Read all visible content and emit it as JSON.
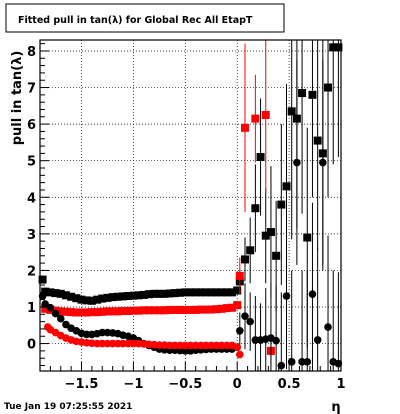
{
  "chart_data": {
    "type": "scatter",
    "title": "Fitted pull in tan(λ) for Global Rec All EtapT",
    "xlabel": "η",
    "ylabel": "pull in tan(λ)",
    "xlim": [
      -1.9,
      1.0
    ],
    "ylim": [
      -0.75,
      8.3
    ],
    "xticks": [
      -1.5,
      -1,
      -0.5,
      0,
      0.5,
      1
    ],
    "xtick_labels": [
      "−1.5",
      "−1",
      "−0.5",
      "0",
      "0.5",
      "1"
    ],
    "yticks": [
      0,
      1,
      2,
      3,
      4,
      5,
      6,
      7,
      8
    ],
    "ytick_labels": [
      "0",
      "1",
      "2",
      "3",
      "4",
      "5",
      "6",
      "7",
      "8"
    ],
    "grid": true,
    "timestamp": "Tue Jan 19 07:25:55 2021",
    "series": [
      {
        "marker": "square",
        "color": "#000000",
        "x": [
          -1.875,
          -1.85,
          -1.8,
          -1.75,
          -1.7,
          -1.65,
          -1.6,
          -1.55,
          -1.5,
          -1.45,
          -1.4,
          -1.35,
          -1.3,
          -1.25,
          -1.2,
          -1.15,
          -1.1,
          -1.05,
          -1.0,
          -0.95,
          -0.9,
          -0.85,
          -0.8,
          -0.75,
          -0.7,
          -0.65,
          -0.6,
          -0.55,
          -0.5,
          -0.45,
          -0.4,
          -0.35,
          -0.3,
          -0.25,
          -0.2,
          -0.15,
          -0.1,
          -0.05,
          0.0,
          0.025,
          0.075,
          0.125,
          0.175,
          0.225,
          0.275,
          0.325,
          0.375,
          0.425,
          0.475,
          0.525,
          0.575,
          0.625,
          0.675,
          0.725,
          0.775,
          0.825,
          0.875,
          0.925,
          0.975
        ],
        "y": [
          1.75,
          1.42,
          1.4,
          1.38,
          1.36,
          1.32,
          1.28,
          1.24,
          1.2,
          1.18,
          1.17,
          1.2,
          1.23,
          1.25,
          1.27,
          1.28,
          1.29,
          1.3,
          1.31,
          1.32,
          1.33,
          1.35,
          1.36,
          1.36,
          1.36,
          1.37,
          1.38,
          1.39,
          1.4,
          1.4,
          1.4,
          1.4,
          1.4,
          1.4,
          1.4,
          1.4,
          1.4,
          1.4,
          1.45,
          1.7,
          2.3,
          2.55,
          3.7,
          5.1,
          2.95,
          3.05,
          2.4,
          3.8,
          4.3,
          6.35,
          6.15,
          6.85,
          2.9,
          6.8,
          5.55,
          5.2,
          7.0,
          8.1,
          8.1
        ],
        "err": [
          0.05,
          0.04,
          0.04,
          0.04,
          0.04,
          0.04,
          0.04,
          0.04,
          0.04,
          0.04,
          0.04,
          0.04,
          0.04,
          0.04,
          0.04,
          0.04,
          0.04,
          0.04,
          0.04,
          0.04,
          0.04,
          0.04,
          0.04,
          0.04,
          0.04,
          0.04,
          0.04,
          0.04,
          0.04,
          0.04,
          0.04,
          0.04,
          0.04,
          0.04,
          0.04,
          0.04,
          0.04,
          0.04,
          0.1,
          0.3,
          0.6,
          0.9,
          1.2,
          1.6,
          1.3,
          1.8,
          1.5,
          2.2,
          2.8,
          3.5,
          3.0,
          3.3,
          3.0,
          2.8,
          3.0,
          3.2,
          3.0,
          3.2,
          3.0
        ]
      },
      {
        "marker": "square",
        "color": "#ff0000",
        "x": [
          -1.85,
          -1.8,
          -1.75,
          -1.7,
          -1.65,
          -1.6,
          -1.55,
          -1.5,
          -1.45,
          -1.4,
          -1.35,
          -1.3,
          -1.25,
          -1.2,
          -1.15,
          -1.1,
          -1.05,
          -1.0,
          -0.95,
          -0.9,
          -0.85,
          -0.8,
          -0.75,
          -0.7,
          -0.65,
          -0.6,
          -0.55,
          -0.5,
          -0.45,
          -0.4,
          -0.35,
          -0.3,
          -0.25,
          -0.2,
          -0.15,
          -0.1,
          -0.05,
          0.0,
          0.025,
          0.075,
          0.175,
          0.275,
          0.325
        ],
        "y": [
          0.95,
          0.92,
          0.9,
          0.88,
          0.87,
          0.86,
          0.85,
          0.85,
          0.85,
          0.86,
          0.86,
          0.87,
          0.88,
          0.88,
          0.88,
          0.89,
          0.89,
          0.9,
          0.9,
          0.91,
          0.91,
          0.91,
          0.91,
          0.91,
          0.92,
          0.92,
          0.92,
          0.92,
          0.92,
          0.92,
          0.93,
          0.93,
          0.93,
          0.94,
          0.95,
          0.97,
          0.98,
          1.05,
          1.85,
          5.9,
          6.15,
          6.25,
          -0.2
        ],
        "err": [
          0.04,
          0.03,
          0.03,
          0.03,
          0.03,
          0.03,
          0.03,
          0.03,
          0.03,
          0.03,
          0.03,
          0.03,
          0.03,
          0.03,
          0.03,
          0.03,
          0.03,
          0.03,
          0.03,
          0.03,
          0.03,
          0.03,
          0.03,
          0.03,
          0.03,
          0.03,
          0.03,
          0.03,
          0.03,
          0.03,
          0.03,
          0.03,
          0.03,
          0.03,
          0.03,
          0.03,
          0.05,
          0.1,
          0.5,
          2.3,
          1.2,
          2.1,
          0.4
        ]
      },
      {
        "marker": "circle",
        "color": "#000000",
        "x": [
          -1.875,
          -1.85,
          -1.8,
          -1.75,
          -1.7,
          -1.65,
          -1.6,
          -1.55,
          -1.5,
          -1.45,
          -1.4,
          -1.35,
          -1.3,
          -1.25,
          -1.2,
          -1.15,
          -1.1,
          -1.05,
          -1.0,
          -0.95,
          -0.9,
          -0.85,
          -0.8,
          -0.75,
          -0.7,
          -0.65,
          -0.6,
          -0.55,
          -0.5,
          -0.45,
          -0.4,
          -0.35,
          -0.3,
          -0.25,
          -0.2,
          -0.15,
          -0.1,
          -0.05,
          0.0,
          0.025,
          0.075,
          0.125,
          0.175,
          0.225,
          0.275,
          0.325,
          0.375,
          0.425,
          0.475,
          0.525,
          0.575,
          0.625,
          0.675,
          0.725,
          0.775,
          0.825,
          0.875,
          0.925,
          0.975
        ],
        "y": [
          1.3,
          1.08,
          0.98,
          0.82,
          0.68,
          0.52,
          0.42,
          0.35,
          0.28,
          0.25,
          0.25,
          0.27,
          0.3,
          0.3,
          0.29,
          0.27,
          0.23,
          0.2,
          0.15,
          0.08,
          0.0,
          -0.05,
          -0.1,
          -0.15,
          -0.17,
          -0.18,
          -0.18,
          -0.19,
          -0.2,
          -0.2,
          -0.18,
          -0.17,
          -0.16,
          -0.15,
          -0.15,
          -0.15,
          -0.15,
          -0.15,
          -0.1,
          0.35,
          0.75,
          0.6,
          0.1,
          0.1,
          0.12,
          0.15,
          0.08,
          -0.6,
          1.3,
          -0.5,
          4.95,
          -0.5,
          -0.5,
          1.35,
          0.1,
          4.95,
          0.45,
          -0.5,
          -0.55
        ],
        "err": [
          0.05,
          0.04,
          0.04,
          0.04,
          0.04,
          0.04,
          0.04,
          0.04,
          0.04,
          0.04,
          0.04,
          0.04,
          0.04,
          0.04,
          0.04,
          0.04,
          0.04,
          0.04,
          0.04,
          0.04,
          0.04,
          0.04,
          0.04,
          0.04,
          0.04,
          0.04,
          0.04,
          0.04,
          0.04,
          0.04,
          0.04,
          0.04,
          0.04,
          0.04,
          0.04,
          0.04,
          0.04,
          0.04,
          0.1,
          0.5,
          0.9,
          0.8,
          1.2,
          1.0,
          1.4,
          1.5,
          1.5,
          2.0,
          2.0,
          2.5,
          2.8,
          2.5,
          2.5,
          2.5,
          2.5,
          2.8,
          2.5,
          2.5,
          2.5
        ]
      },
      {
        "marker": "circle",
        "color": "#ff0000",
        "x": [
          -1.825,
          -1.8,
          -1.75,
          -1.7,
          -1.65,
          -1.6,
          -1.55,
          -1.5,
          -1.45,
          -1.4,
          -1.35,
          -1.3,
          -1.25,
          -1.2,
          -1.15,
          -1.1,
          -1.05,
          -1.0,
          -0.95,
          -0.9,
          -0.85,
          -0.8,
          -0.75,
          -0.7,
          -0.65,
          -0.6,
          -0.55,
          -0.5,
          -0.45,
          -0.4,
          -0.35,
          -0.3,
          -0.25,
          -0.2,
          -0.15,
          -0.1,
          -0.05,
          0.0,
          0.025
        ],
        "y": [
          0.45,
          0.38,
          0.3,
          0.22,
          0.15,
          0.1,
          0.06,
          0.04,
          0.02,
          0.01,
          0.0,
          0.0,
          0.0,
          0.0,
          0.0,
          0.0,
          0.0,
          0.0,
          0.0,
          -0.01,
          -0.02,
          -0.03,
          -0.04,
          -0.04,
          -0.05,
          -0.05,
          -0.05,
          -0.05,
          -0.05,
          -0.05,
          -0.05,
          -0.05,
          -0.05,
          -0.05,
          -0.05,
          -0.05,
          -0.05,
          -0.1,
          -0.3
        ],
        "err": [
          0.04,
          0.03,
          0.03,
          0.03,
          0.03,
          0.03,
          0.03,
          0.03,
          0.03,
          0.03,
          0.03,
          0.03,
          0.03,
          0.03,
          0.03,
          0.03,
          0.03,
          0.03,
          0.03,
          0.03,
          0.03,
          0.03,
          0.03,
          0.03,
          0.03,
          0.03,
          0.03,
          0.03,
          0.03,
          0.03,
          0.03,
          0.03,
          0.03,
          0.03,
          0.03,
          0.03,
          0.03,
          0.06,
          0.1
        ]
      }
    ]
  }
}
